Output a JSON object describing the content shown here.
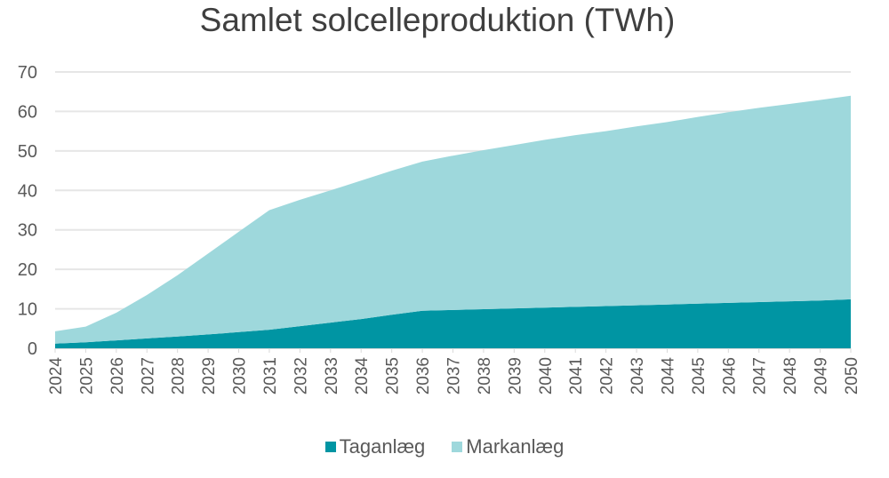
{
  "chart_data": {
    "type": "area",
    "stacked": true,
    "title": "Samlet solcelleproduktion (TWh)",
    "xlabel": "",
    "ylabel": "",
    "ylim": [
      0,
      70
    ],
    "yticks": [
      0,
      10,
      20,
      30,
      40,
      50,
      60,
      70
    ],
    "grid": true,
    "legend_position": "bottom",
    "categories": [
      "2024",
      "2025",
      "2026",
      "2027",
      "2028",
      "2029",
      "2030",
      "2031",
      "2032",
      "2033",
      "2034",
      "2035",
      "2036",
      "2037",
      "2038",
      "2039",
      "2040",
      "2041",
      "2042",
      "2043",
      "2044",
      "2045",
      "2046",
      "2047",
      "2048",
      "2049",
      "2050"
    ],
    "series": [
      {
        "name": "Taganlæg",
        "color": "#0095a3",
        "values": [
          1.2,
          1.5,
          2.0,
          2.5,
          3.0,
          3.5,
          4.1,
          4.7,
          5.6,
          6.5,
          7.4,
          8.5,
          9.5,
          9.7,
          9.9,
          10.1,
          10.3,
          10.5,
          10.7,
          10.9,
          11.1,
          11.3,
          11.5,
          11.7,
          11.9,
          12.1,
          12.4
        ]
      },
      {
        "name": "Markanlæg",
        "color": "#9ed8dc",
        "values": [
          3.1,
          4.0,
          7.0,
          11.0,
          15.5,
          20.5,
          25.4,
          30.3,
          32.0,
          33.5,
          35.1,
          36.5,
          37.8,
          39.1,
          40.3,
          41.4,
          42.5,
          43.5,
          44.3,
          45.3,
          46.2,
          47.3,
          48.3,
          49.2,
          50.0,
          50.8,
          51.6
        ]
      }
    ]
  }
}
